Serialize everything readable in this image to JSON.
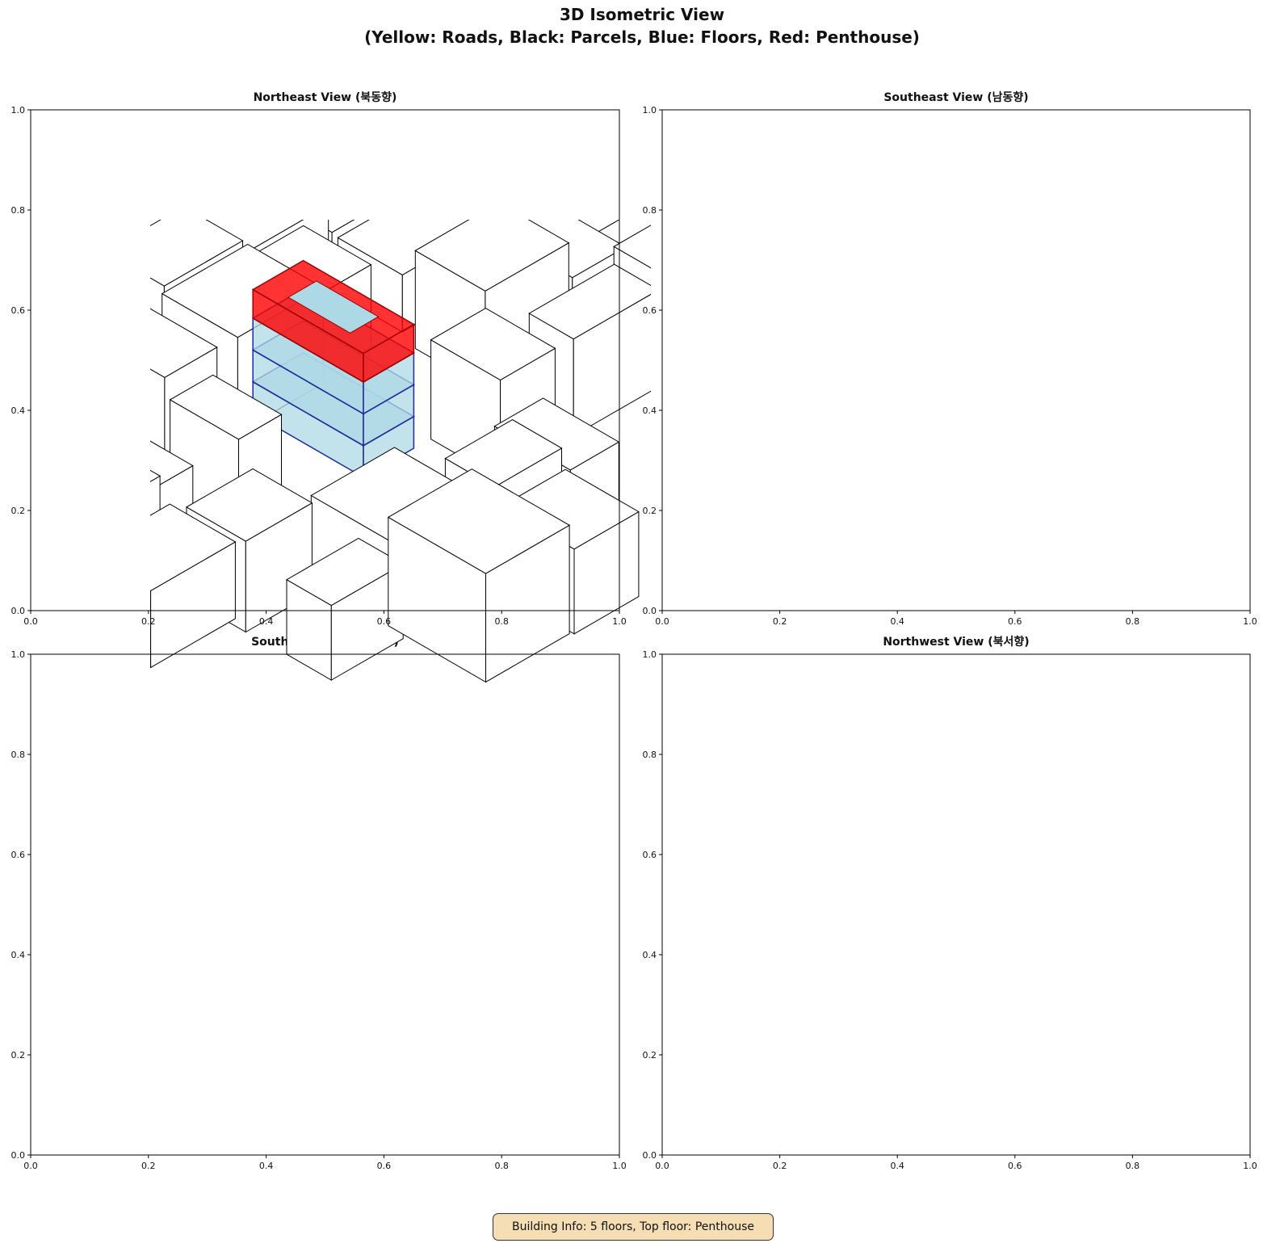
{
  "figure": {
    "title_line1": "3D Isometric View",
    "title_line2": "(Yellow: Roads, Black: Parcels, Blue: Floors, Red: Penthouse)",
    "info_box": "Building Info: 5 floors, Top floor: Penthouse"
  },
  "panels": [
    {
      "title": "Northeast View (북동향)"
    },
    {
      "title": "Southeast View (남동향)"
    },
    {
      "title": "Southwest View (남서향)"
    },
    {
      "title": "Northwest View (북서향)"
    }
  ],
  "axes": {
    "xticks": [
      "0.0",
      "0.2",
      "0.4",
      "0.6",
      "0.8",
      "1.0"
    ],
    "yticks": [
      "0.0",
      "0.2",
      "0.4",
      "0.6",
      "0.8",
      "1.0"
    ],
    "xlim": [
      0,
      1
    ],
    "ylim": [
      0,
      1
    ]
  },
  "colors": {
    "road": "#ffd700",
    "parcel": "#000000",
    "floor_fill": "#add8e6",
    "floor_edge": "#1f2a9c",
    "penthouse": "#ff0000"
  }
}
